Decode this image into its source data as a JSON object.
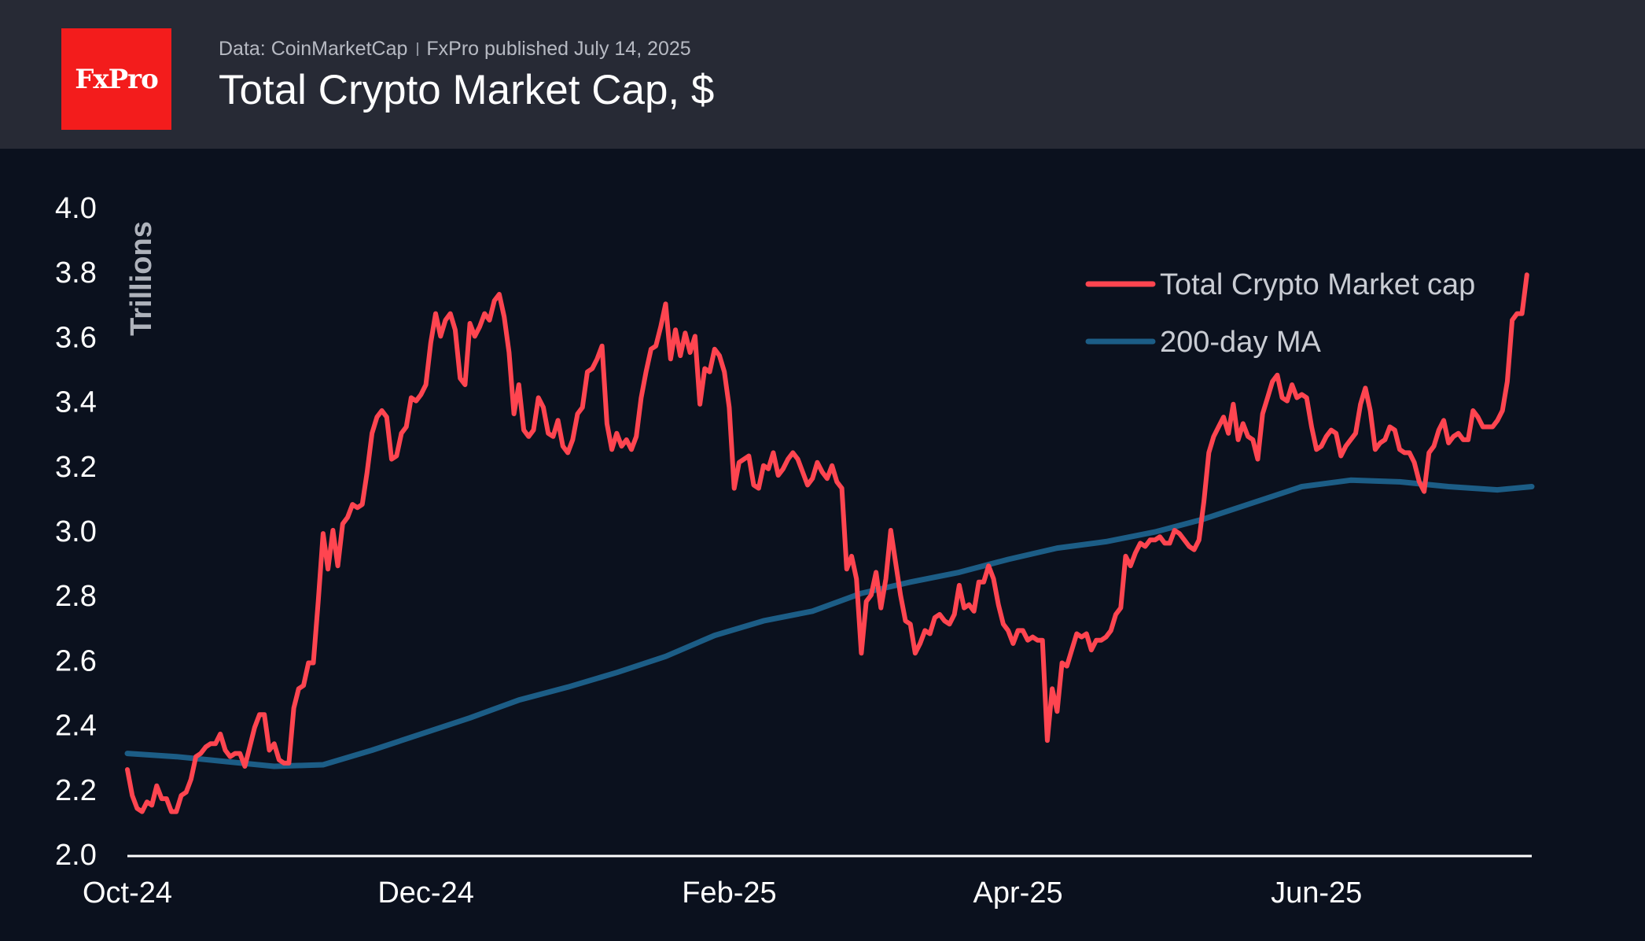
{
  "header": {
    "logo_text": "FxPro",
    "source": "Data: CoinMarketCap",
    "published": "FxPro published July 14, 2025",
    "title": "Total Crypto Market Cap, $"
  },
  "chart_data": {
    "type": "line",
    "title": "Total Crypto Market Cap, $",
    "xlabel": "",
    "ylabel": "Trillions",
    "ylim": [
      2.0,
      4.0
    ],
    "yticks": [
      "2.0",
      "2.2",
      "2.4",
      "2.6",
      "2.8",
      "3.0",
      "3.2",
      "3.4",
      "3.6",
      "3.8",
      "4.0"
    ],
    "xlim_days": [
      0,
      287
    ],
    "xticks": [
      {
        "label": "Oct-24",
        "day": 0
      },
      {
        "label": "Dec-24",
        "day": 61
      },
      {
        "label": "Feb-25",
        "day": 123
      },
      {
        "label": "Apr-25",
        "day": 182
      },
      {
        "label": "Jun-25",
        "day": 243
      }
    ],
    "legend": {
      "position": "top-right"
    },
    "grid": false,
    "colors": {
      "market_cap": "#ff4550",
      "ma200": "#1c5d86"
    },
    "series": [
      {
        "name": "Total Crypto Market cap",
        "key": "market_cap",
        "points": [
          [
            0,
            2.26
          ],
          [
            1,
            2.18
          ],
          [
            2,
            2.14
          ],
          [
            3,
            2.13
          ],
          [
            4,
            2.16
          ],
          [
            5,
            2.15
          ],
          [
            6,
            2.21
          ],
          [
            7,
            2.17
          ],
          [
            8,
            2.17
          ],
          [
            9,
            2.13
          ],
          [
            10,
            2.13
          ],
          [
            11,
            2.18
          ],
          [
            12,
            2.19
          ],
          [
            13,
            2.23
          ],
          [
            14,
            2.3
          ],
          [
            15,
            2.31
          ],
          [
            16,
            2.33
          ],
          [
            17,
            2.34
          ],
          [
            18,
            2.34
          ],
          [
            19,
            2.37
          ],
          [
            20,
            2.32
          ],
          [
            21,
            2.3
          ],
          [
            22,
            2.31
          ],
          [
            23,
            2.31
          ],
          [
            24,
            2.27
          ],
          [
            25,
            2.33
          ],
          [
            26,
            2.39
          ],
          [
            27,
            2.43
          ],
          [
            28,
            2.43
          ],
          [
            29,
            2.32
          ],
          [
            30,
            2.34
          ],
          [
            31,
            2.29
          ],
          [
            32,
            2.28
          ],
          [
            33,
            2.28
          ],
          [
            34,
            2.45
          ],
          [
            35,
            2.51
          ],
          [
            36,
            2.52
          ],
          [
            37,
            2.59
          ],
          [
            38,
            2.59
          ],
          [
            39,
            2.78
          ],
          [
            40,
            2.99
          ],
          [
            41,
            2.88
          ],
          [
            42,
            3.0
          ],
          [
            43,
            2.89
          ],
          [
            44,
            3.02
          ],
          [
            45,
            3.04
          ],
          [
            46,
            3.08
          ],
          [
            47,
            3.07
          ],
          [
            48,
            3.08
          ],
          [
            49,
            3.18
          ],
          [
            50,
            3.3
          ],
          [
            51,
            3.35
          ],
          [
            52,
            3.37
          ],
          [
            53,
            3.35
          ],
          [
            54,
            3.22
          ],
          [
            55,
            3.23
          ],
          [
            56,
            3.3
          ],
          [
            57,
            3.32
          ],
          [
            58,
            3.41
          ],
          [
            59,
            3.4
          ],
          [
            60,
            3.42
          ],
          [
            61,
            3.45
          ],
          [
            62,
            3.58
          ],
          [
            63,
            3.67
          ],
          [
            64,
            3.6
          ],
          [
            65,
            3.65
          ],
          [
            66,
            3.67
          ],
          [
            67,
            3.62
          ],
          [
            68,
            3.47
          ],
          [
            69,
            3.45
          ],
          [
            70,
            3.64
          ],
          [
            71,
            3.6
          ],
          [
            72,
            3.63
          ],
          [
            73,
            3.67
          ],
          [
            74,
            3.65
          ],
          [
            75,
            3.71
          ],
          [
            76,
            3.73
          ],
          [
            77,
            3.66
          ],
          [
            78,
            3.55
          ],
          [
            79,
            3.36
          ],
          [
            80,
            3.45
          ],
          [
            81,
            3.31
          ],
          [
            82,
            3.29
          ],
          [
            83,
            3.31
          ],
          [
            84,
            3.41
          ],
          [
            85,
            3.38
          ],
          [
            86,
            3.3
          ],
          [
            87,
            3.29
          ],
          [
            88,
            3.34
          ],
          [
            89,
            3.26
          ],
          [
            90,
            3.24
          ],
          [
            91,
            3.28
          ],
          [
            92,
            3.36
          ],
          [
            93,
            3.38
          ],
          [
            94,
            3.49
          ],
          [
            95,
            3.5
          ],
          [
            96,
            3.53
          ],
          [
            97,
            3.57
          ],
          [
            98,
            3.33
          ],
          [
            99,
            3.25
          ],
          [
            100,
            3.3
          ],
          [
            101,
            3.26
          ],
          [
            102,
            3.28
          ],
          [
            103,
            3.25
          ],
          [
            104,
            3.29
          ],
          [
            105,
            3.41
          ],
          [
            106,
            3.49
          ],
          [
            107,
            3.56
          ],
          [
            108,
            3.57
          ],
          [
            109,
            3.63
          ],
          [
            110,
            3.7
          ],
          [
            111,
            3.53
          ],
          [
            112,
            3.62
          ],
          [
            113,
            3.54
          ],
          [
            114,
            3.61
          ],
          [
            115,
            3.55
          ],
          [
            116,
            3.6
          ],
          [
            117,
            3.39
          ],
          [
            118,
            3.5
          ],
          [
            119,
            3.49
          ],
          [
            120,
            3.56
          ],
          [
            121,
            3.54
          ],
          [
            122,
            3.49
          ],
          [
            123,
            3.38
          ],
          [
            124,
            3.13
          ],
          [
            125,
            3.21
          ],
          [
            126,
            3.22
          ],
          [
            127,
            3.23
          ],
          [
            128,
            3.14
          ],
          [
            129,
            3.13
          ],
          [
            130,
            3.2
          ],
          [
            131,
            3.19
          ],
          [
            132,
            3.24
          ],
          [
            133,
            3.17
          ],
          [
            134,
            3.19
          ],
          [
            135,
            3.22
          ],
          [
            136,
            3.24
          ],
          [
            137,
            3.22
          ],
          [
            138,
            3.18
          ],
          [
            139,
            3.14
          ],
          [
            140,
            3.16
          ],
          [
            141,
            3.21
          ],
          [
            142,
            3.18
          ],
          [
            143,
            3.16
          ],
          [
            144,
            3.2
          ],
          [
            145,
            3.15
          ],
          [
            146,
            3.13
          ],
          [
            147,
            2.88
          ],
          [
            148,
            2.92
          ],
          [
            149,
            2.85
          ],
          [
            150,
            2.62
          ],
          [
            151,
            2.78
          ],
          [
            152,
            2.8
          ],
          [
            153,
            2.87
          ],
          [
            154,
            2.76
          ],
          [
            155,
            2.85
          ],
          [
            156,
            3.0
          ],
          [
            157,
            2.9
          ],
          [
            158,
            2.8
          ],
          [
            159,
            2.72
          ],
          [
            160,
            2.71
          ],
          [
            161,
            2.62
          ],
          [
            162,
            2.65
          ],
          [
            163,
            2.69
          ],
          [
            164,
            2.68
          ],
          [
            165,
            2.73
          ],
          [
            166,
            2.74
          ],
          [
            167,
            2.72
          ],
          [
            168,
            2.71
          ],
          [
            169,
            2.74
          ],
          [
            170,
            2.83
          ],
          [
            171,
            2.76
          ],
          [
            172,
            2.77
          ],
          [
            173,
            2.75
          ],
          [
            174,
            2.84
          ],
          [
            175,
            2.84
          ],
          [
            176,
            2.89
          ],
          [
            177,
            2.85
          ],
          [
            178,
            2.77
          ],
          [
            179,
            2.71
          ],
          [
            180,
            2.69
          ],
          [
            181,
            2.65
          ],
          [
            182,
            2.69
          ],
          [
            183,
            2.69
          ],
          [
            184,
            2.66
          ],
          [
            185,
            2.67
          ],
          [
            186,
            2.66
          ],
          [
            187,
            2.66
          ],
          [
            188,
            2.35
          ],
          [
            189,
            2.51
          ],
          [
            190,
            2.44
          ],
          [
            191,
            2.59
          ],
          [
            192,
            2.58
          ],
          [
            193,
            2.63
          ],
          [
            194,
            2.68
          ],
          [
            195,
            2.67
          ],
          [
            196,
            2.68
          ],
          [
            197,
            2.63
          ],
          [
            198,
            2.66
          ],
          [
            199,
            2.66
          ],
          [
            200,
            2.67
          ],
          [
            201,
            2.69
          ],
          [
            202,
            2.74
          ],
          [
            203,
            2.76
          ],
          [
            204,
            2.92
          ],
          [
            205,
            2.89
          ],
          [
            206,
            2.93
          ],
          [
            207,
            2.96
          ],
          [
            208,
            2.95
          ],
          [
            209,
            2.97
          ],
          [
            210,
            2.97
          ],
          [
            211,
            2.98
          ],
          [
            212,
            2.96
          ],
          [
            213,
            2.96
          ],
          [
            214,
            3.0
          ],
          [
            215,
            2.99
          ],
          [
            216,
            2.97
          ],
          [
            217,
            2.95
          ],
          [
            218,
            2.94
          ],
          [
            219,
            2.97
          ],
          [
            220,
            3.09
          ],
          [
            221,
            3.24
          ],
          [
            222,
            3.29
          ],
          [
            223,
            3.32
          ],
          [
            224,
            3.35
          ],
          [
            225,
            3.3
          ],
          [
            226,
            3.39
          ],
          [
            227,
            3.28
          ],
          [
            228,
            3.33
          ],
          [
            229,
            3.29
          ],
          [
            230,
            3.28
          ],
          [
            231,
            3.22
          ],
          [
            232,
            3.36
          ],
          [
            233,
            3.41
          ],
          [
            234,
            3.46
          ],
          [
            235,
            3.48
          ],
          [
            236,
            3.41
          ],
          [
            237,
            3.4
          ],
          [
            238,
            3.45
          ],
          [
            239,
            3.41
          ],
          [
            240,
            3.42
          ],
          [
            241,
            3.41
          ],
          [
            242,
            3.32
          ],
          [
            243,
            3.25
          ],
          [
            244,
            3.26
          ],
          [
            245,
            3.29
          ],
          [
            246,
            3.31
          ],
          [
            247,
            3.3
          ],
          [
            248,
            3.23
          ],
          [
            249,
            3.26
          ],
          [
            250,
            3.28
          ],
          [
            251,
            3.3
          ],
          [
            252,
            3.39
          ],
          [
            253,
            3.44
          ],
          [
            254,
            3.37
          ],
          [
            255,
            3.25
          ],
          [
            256,
            3.27
          ],
          [
            257,
            3.28
          ],
          [
            258,
            3.32
          ],
          [
            259,
            3.31
          ],
          [
            260,
            3.25
          ],
          [
            261,
            3.24
          ],
          [
            262,
            3.24
          ],
          [
            263,
            3.21
          ],
          [
            264,
            3.15
          ],
          [
            265,
            3.12
          ],
          [
            266,
            3.24
          ],
          [
            267,
            3.26
          ],
          [
            268,
            3.31
          ],
          [
            269,
            3.34
          ],
          [
            270,
            3.27
          ],
          [
            271,
            3.29
          ],
          [
            272,
            3.3
          ],
          [
            273,
            3.28
          ],
          [
            274,
            3.28
          ],
          [
            275,
            3.37
          ],
          [
            276,
            3.35
          ],
          [
            277,
            3.32
          ],
          [
            278,
            3.32
          ],
          [
            279,
            3.32
          ],
          [
            280,
            3.34
          ],
          [
            281,
            3.37
          ],
          [
            282,
            3.46
          ],
          [
            283,
            3.65
          ],
          [
            284,
            3.67
          ],
          [
            285,
            3.67
          ],
          [
            286,
            3.79
          ]
        ]
      },
      {
        "name": "200-day MA",
        "key": "ma200",
        "points": [
          [
            0,
            2.31
          ],
          [
            10,
            2.3
          ],
          [
            20,
            2.285
          ],
          [
            30,
            2.27
          ],
          [
            40,
            2.275
          ],
          [
            50,
            2.32
          ],
          [
            60,
            2.37
          ],
          [
            70,
            2.42
          ],
          [
            80,
            2.475
          ],
          [
            90,
            2.515
          ],
          [
            100,
            2.56
          ],
          [
            110,
            2.61
          ],
          [
            120,
            2.675
          ],
          [
            130,
            2.72
          ],
          [
            140,
            2.75
          ],
          [
            150,
            2.805
          ],
          [
            160,
            2.84
          ],
          [
            170,
            2.87
          ],
          [
            180,
            2.91
          ],
          [
            190,
            2.945
          ],
          [
            200,
            2.965
          ],
          [
            210,
            2.995
          ],
          [
            220,
            3.035
          ],
          [
            230,
            3.085
          ],
          [
            240,
            3.135
          ],
          [
            250,
            3.155
          ],
          [
            260,
            3.15
          ],
          [
            270,
            3.135
          ],
          [
            280,
            3.125
          ],
          [
            287,
            3.135
          ]
        ]
      }
    ]
  }
}
